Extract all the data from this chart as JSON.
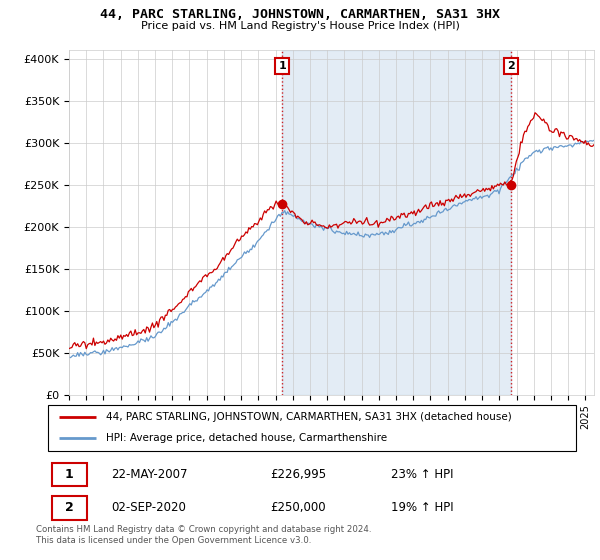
{
  "title": "44, PARC STARLING, JOHNSTOWN, CARMARTHEN, SA31 3HX",
  "subtitle": "Price paid vs. HM Land Registry's House Price Index (HPI)",
  "yticks": [
    0,
    50000,
    100000,
    150000,
    200000,
    250000,
    300000,
    350000,
    400000
  ],
  "ytick_labels": [
    "£0",
    "£50K",
    "£100K",
    "£150K",
    "£200K",
    "£250K",
    "£300K",
    "£350K",
    "£400K"
  ],
  "sale1_date": "22-MAY-2007",
  "sale1_price": 226995,
  "sale1_price_str": "£226,995",
  "sale1_hpi_pct": "23% ↑ HPI",
  "sale2_date": "02-SEP-2020",
  "sale2_price": 250000,
  "sale2_price_str": "£250,000",
  "sale2_hpi_pct": "19% ↑ HPI",
  "legend_line1": "44, PARC STARLING, JOHNSTOWN, CARMARTHEN, SA31 3HX (detached house)",
  "legend_line2": "HPI: Average price, detached house, Carmarthenshire",
  "footer": "Contains HM Land Registry data © Crown copyright and database right 2024.\nThis data is licensed under the Open Government Licence v3.0.",
  "red_color": "#cc0000",
  "blue_color": "#6699cc",
  "shade_color": "#ddeeff",
  "grid_color": "#cccccc",
  "bg_color": "#ffffff",
  "sale1_x": 2007.38,
  "sale2_x": 2020.67,
  "xmin": 1995,
  "xmax": 2025.5,
  "ymin": 0,
  "ymax": 410000
}
